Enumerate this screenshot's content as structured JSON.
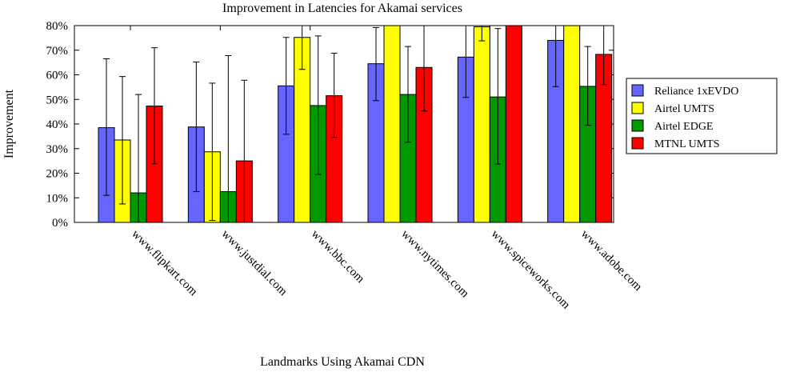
{
  "chart_data": {
    "type": "bar",
    "title": "Improvement in Latencies for Akamai services",
    "xlabel": "Landmarks Using Akamai CDN",
    "ylabel": "Improvement",
    "ylim": [
      0,
      80
    ],
    "yticks": [
      "0%",
      "10%",
      "20%",
      "30%",
      "40%",
      "50%",
      "60%",
      "70%",
      "80%"
    ],
    "legend_position": "right",
    "grid": false,
    "categories": [
      "www.flipkart.com",
      "www.justdial.com",
      "www.bbc.com",
      "www.nytimes.com",
      "www.spiceworks.com",
      "www.adobe.com"
    ],
    "series": [
      {
        "name": "Reliance 1xEVDO",
        "color": "#6666ff",
        "values": [
          38.5,
          38.8,
          55.5,
          64.5,
          67.2,
          74.0
        ],
        "err_low": [
          11.0,
          12.5,
          35.8,
          49.5,
          50.8,
          55.2
        ],
        "err_high": [
          66.5,
          65.2,
          75.2,
          79.2,
          80.0,
          80.0
        ]
      },
      {
        "name": "Airtel UMTS",
        "color": "#ffff00",
        "values": [
          33.5,
          28.7,
          75.2,
          80.0,
          79.5,
          80.0
        ],
        "err_low": [
          7.5,
          0.8,
          62.2,
          80.0,
          73.8,
          80.0
        ],
        "err_high": [
          59.3,
          56.6,
          80.0,
          80.0,
          80.0,
          80.0
        ]
      },
      {
        "name": "Airtel EDGE",
        "color": "#009900",
        "values": [
          12.0,
          12.5,
          47.5,
          52.0,
          51.0,
          55.3
        ],
        "err_low": [
          0.0,
          0.0,
          19.5,
          32.6,
          23.7,
          39.5
        ],
        "err_high": [
          52.0,
          67.8,
          75.8,
          71.5,
          78.8,
          71.5
        ]
      },
      {
        "name": "MTNL UMTS",
        "color": "#ff0000",
        "values": [
          47.3,
          25.0,
          51.5,
          63.0,
          80.0,
          68.3
        ],
        "err_low": [
          23.8,
          0.0,
          34.5,
          45.3,
          80.0,
          56.0
        ],
        "err_high": [
          71.0,
          57.8,
          68.8,
          80.0,
          80.0,
          80.0
        ]
      }
    ]
  }
}
